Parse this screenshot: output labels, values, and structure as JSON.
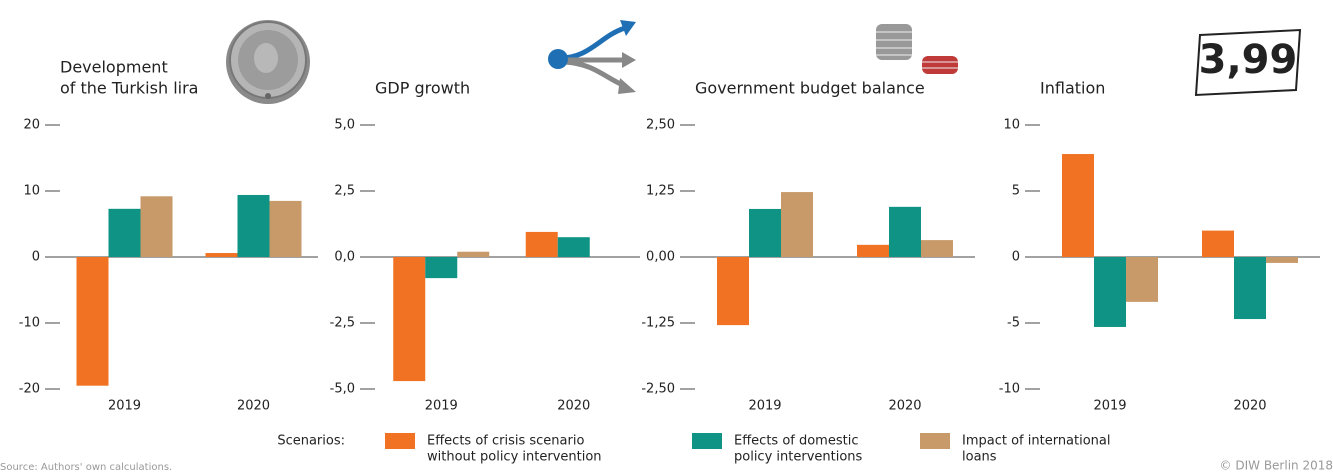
{
  "chart_data": [
    {
      "type": "bar",
      "title": [
        "Development",
        "of the Turkish lira"
      ],
      "categories": [
        "2019",
        "2020"
      ],
      "series": [
        {
          "values": [
            -19.5,
            0.6
          ]
        },
        {
          "values": [
            7.3,
            9.4
          ]
        },
        {
          "values": [
            9.2,
            8.5
          ]
        }
      ],
      "ylim": [
        -20,
        20
      ],
      "yticks": [
        -20,
        -10,
        0,
        10,
        20
      ]
    },
    {
      "type": "bar",
      "title": [
        "GDP growth"
      ],
      "categories": [
        "2019",
        "2020"
      ],
      "series": [
        {
          "values": [
            -4.7,
            0.95
          ]
        },
        {
          "values": [
            -0.8,
            0.75
          ]
        },
        {
          "values": [
            0.2,
            null
          ]
        }
      ],
      "ylim": [
        -5,
        5
      ],
      "yticks": [
        {
          "value": -5,
          "label": "-5,0"
        },
        {
          "value": -2.5,
          "label": "-2,5"
        },
        {
          "value": 0,
          "label": "0,0"
        },
        {
          "value": 2.5,
          "label": "2,5"
        },
        {
          "value": 5,
          "label": "5,0"
        }
      ]
    },
    {
      "type": "bar",
      "title": [
        "Government budget balance"
      ],
      "categories": [
        "2019",
        "2020"
      ],
      "series": [
        {
          "values": [
            -1.29,
            0.23
          ]
        },
        {
          "values": [
            0.91,
            0.95
          ]
        },
        {
          "values": [
            1.23,
            0.32
          ]
        }
      ],
      "ylim": [
        -2.5,
        2.5
      ],
      "yticks": [
        {
          "value": -2.5,
          "label": "-2,50"
        },
        {
          "value": -1.25,
          "label": "-1,25"
        },
        {
          "value": 0,
          "label": "0,00"
        },
        {
          "value": 1.25,
          "label": "1,25"
        },
        {
          "value": 2.5,
          "label": "2,50"
        }
      ]
    },
    {
      "type": "bar",
      "title": [
        "Inflation"
      ],
      "categories": [
        "2019",
        "2020"
      ],
      "series": [
        {
          "values": [
            7.8,
            2.0
          ]
        },
        {
          "values": [
            -5.3,
            -4.7
          ]
        },
        {
          "values": [
            -3.4,
            -0.45
          ]
        }
      ],
      "ylim": [
        -10,
        10
      ],
      "yticks": [
        -10,
        -5,
        0,
        5,
        10
      ]
    }
  ],
  "legend": {
    "title": "Scenarios:",
    "items": [
      {
        "name": [
          "Effects of crisis scenario",
          "without policy intervention"
        ],
        "color": "#f07222"
      },
      {
        "name": [
          "Effects of domestic",
          "policy interventions"
        ],
        "color": "#0e9384"
      },
      {
        "name": [
          "Impact of international",
          "loans"
        ],
        "color": "#c89a6a"
      }
    ]
  },
  "source": "Source: Authors' own calculations.",
  "credit": "© DIW Berlin 2018"
}
